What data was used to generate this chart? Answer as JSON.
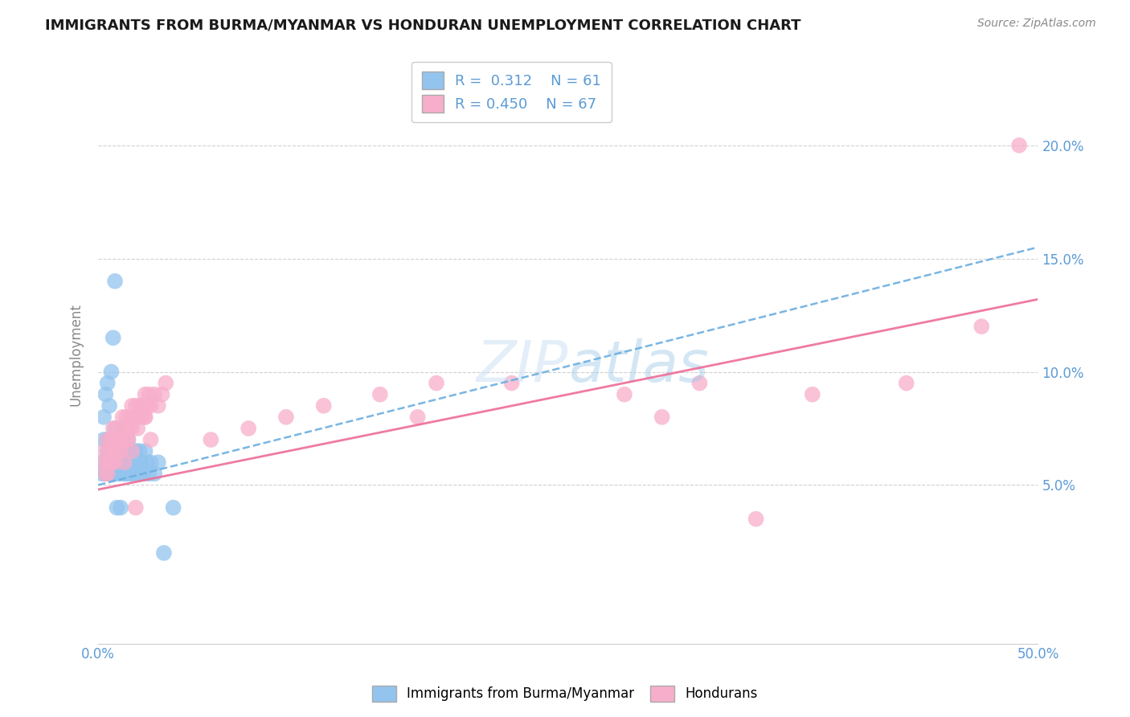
{
  "title": "IMMIGRANTS FROM BURMA/MYANMAR VS HONDURAN UNEMPLOYMENT CORRELATION CHART",
  "source": "Source: ZipAtlas.com",
  "ylabel": "Unemployment",
  "xlim": [
    0.0,
    0.5
  ],
  "ylim": [
    -0.02,
    0.235
  ],
  "yticks": [
    0.05,
    0.1,
    0.15,
    0.2
  ],
  "ytick_labels": [
    "5.0%",
    "10.0%",
    "15.0%",
    "20.0%"
  ],
  "xtick_labels_shown": [
    "0.0%",
    "50.0%"
  ],
  "xtick_positions_shown": [
    0.0,
    0.5
  ],
  "blue_R": "0.312",
  "blue_N": "61",
  "pink_R": "0.450",
  "pink_N": "67",
  "blue_color": "#93C4EE",
  "pink_color": "#F7AECA",
  "blue_line_color": "#6AAEE0",
  "pink_line_color": "#EE6D96",
  "blue_trend_x": [
    0.0,
    0.5
  ],
  "blue_trend_y": [
    0.05,
    0.155
  ],
  "pink_trend_x": [
    0.0,
    0.5
  ],
  "pink_trend_y": [
    0.048,
    0.132
  ],
  "blue_scatter_x": [
    0.002,
    0.003,
    0.003,
    0.004,
    0.005,
    0.005,
    0.005,
    0.006,
    0.006,
    0.007,
    0.007,
    0.007,
    0.008,
    0.008,
    0.009,
    0.009,
    0.009,
    0.01,
    0.01,
    0.01,
    0.011,
    0.011,
    0.012,
    0.012,
    0.013,
    0.013,
    0.014,
    0.014,
    0.015,
    0.015,
    0.016,
    0.016,
    0.017,
    0.017,
    0.018,
    0.018,
    0.019,
    0.02,
    0.02,
    0.021,
    0.022,
    0.022,
    0.023,
    0.024,
    0.025,
    0.026,
    0.027,
    0.028,
    0.03,
    0.032,
    0.003,
    0.004,
    0.005,
    0.006,
    0.007,
    0.008,
    0.009,
    0.01,
    0.012,
    0.04,
    0.035
  ],
  "blue_scatter_y": [
    0.055,
    0.06,
    0.07,
    0.055,
    0.06,
    0.065,
    0.07,
    0.055,
    0.065,
    0.06,
    0.065,
    0.07,
    0.055,
    0.07,
    0.06,
    0.065,
    0.075,
    0.055,
    0.065,
    0.07,
    0.06,
    0.065,
    0.055,
    0.065,
    0.06,
    0.07,
    0.055,
    0.065,
    0.055,
    0.065,
    0.06,
    0.07,
    0.055,
    0.065,
    0.055,
    0.065,
    0.06,
    0.055,
    0.065,
    0.06,
    0.055,
    0.065,
    0.06,
    0.055,
    0.065,
    0.06,
    0.055,
    0.06,
    0.055,
    0.06,
    0.08,
    0.09,
    0.095,
    0.085,
    0.1,
    0.115,
    0.14,
    0.04,
    0.04,
    0.04,
    0.02
  ],
  "pink_scatter_x": [
    0.002,
    0.003,
    0.004,
    0.005,
    0.005,
    0.006,
    0.007,
    0.007,
    0.008,
    0.008,
    0.009,
    0.009,
    0.01,
    0.01,
    0.011,
    0.012,
    0.013,
    0.013,
    0.014,
    0.015,
    0.015,
    0.016,
    0.017,
    0.018,
    0.018,
    0.019,
    0.02,
    0.021,
    0.022,
    0.023,
    0.024,
    0.025,
    0.025,
    0.026,
    0.027,
    0.028,
    0.03,
    0.032,
    0.034,
    0.036,
    0.005,
    0.007,
    0.009,
    0.011,
    0.014,
    0.016,
    0.018,
    0.021,
    0.025,
    0.028,
    0.06,
    0.08,
    0.1,
    0.12,
    0.15,
    0.18,
    0.22,
    0.28,
    0.32,
    0.38,
    0.43,
    0.47,
    0.49,
    0.02,
    0.17,
    0.3,
    0.35
  ],
  "pink_scatter_y": [
    0.06,
    0.065,
    0.055,
    0.06,
    0.07,
    0.065,
    0.06,
    0.07,
    0.065,
    0.075,
    0.06,
    0.07,
    0.065,
    0.075,
    0.07,
    0.065,
    0.07,
    0.08,
    0.075,
    0.07,
    0.08,
    0.075,
    0.08,
    0.085,
    0.075,
    0.08,
    0.085,
    0.08,
    0.085,
    0.08,
    0.085,
    0.09,
    0.08,
    0.085,
    0.09,
    0.085,
    0.09,
    0.085,
    0.09,
    0.095,
    0.055,
    0.06,
    0.065,
    0.07,
    0.06,
    0.07,
    0.065,
    0.075,
    0.08,
    0.07,
    0.07,
    0.075,
    0.08,
    0.085,
    0.09,
    0.095,
    0.095,
    0.09,
    0.095,
    0.09,
    0.095,
    0.12,
    0.2,
    0.04,
    0.08,
    0.08,
    0.035
  ],
  "bg_color": "#FFFFFF",
  "grid_color": "#CCCCCC",
  "title_color": "#1a1a1a",
  "tick_color": "#5B9BD5",
  "legend_edge_color": "#CCCCCC"
}
